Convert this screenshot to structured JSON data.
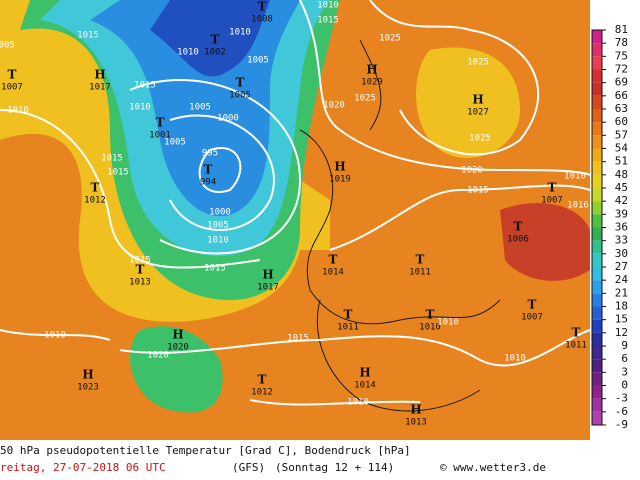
{
  "map": {
    "centers": [
      {
        "symbol": "T",
        "pressure": "1008"
      },
      {
        "symbol": "T",
        "pressure": "1002"
      },
      {
        "symbol": "T",
        "pressure": "1005"
      },
      {
        "symbol": "H",
        "pressure": "1017"
      },
      {
        "symbol": "T",
        "pressure": "1007"
      },
      {
        "symbol": "T",
        "pressure": "1001"
      },
      {
        "symbol": "H",
        "pressure": "1029"
      },
      {
        "symbol": "H",
        "pressure": "1027"
      },
      {
        "symbol": "T",
        "pressure": "994"
      },
      {
        "symbol": "H",
        "pressure": "1019"
      },
      {
        "symbol": "T",
        "pressure": "1012"
      },
      {
        "symbol": "T",
        "pressure": "1013"
      },
      {
        "symbol": "T",
        "pressure": "1014"
      },
      {
        "symbol": "H",
        "pressure": "1017"
      },
      {
        "symbol": "T",
        "pressure": "1011"
      },
      {
        "symbol": "T",
        "pressure": "1011"
      },
      {
        "symbol": "T",
        "pressure": "1010"
      },
      {
        "symbol": "T",
        "pressure": "1007"
      },
      {
        "symbol": "T",
        "pressure": "1006"
      },
      {
        "symbol": "T",
        "pressure": "1007"
      },
      {
        "symbol": "H",
        "pressure": "1020"
      },
      {
        "symbol": "H",
        "pressure": "1023"
      },
      {
        "symbol": "T",
        "pressure": "1012"
      },
      {
        "symbol": "H",
        "pressure": "1014"
      },
      {
        "symbol": "H",
        "pressure": "1013"
      },
      {
        "symbol": "T",
        "pressure": "1011"
      }
    ],
    "isobar_labels": [
      "1010",
      "1015",
      "1010",
      "1010",
      "1005",
      "1015",
      "1025",
      "1025",
      "1020",
      "1025",
      "1015",
      "1010",
      "1005",
      "1000",
      "1005",
      "995",
      "1015",
      "1015",
      "1025",
      "1020",
      "1015",
      "1010",
      "1016",
      "1000",
      "1005",
      "1010",
      "1015",
      "1015",
      "1015",
      "1020",
      "1010",
      "1010",
      "1010",
      "1010",
      "1005",
      "1010"
    ],
    "colorbar": {
      "ticks": [
        81,
        78,
        75,
        72,
        69,
        66,
        63,
        60,
        57,
        54,
        51,
        48,
        45,
        42,
        39,
        36,
        33,
        30,
        27,
        24,
        21,
        18,
        15,
        12,
        9,
        6,
        3,
        0,
        -3,
        -6,
        -9
      ]
    },
    "footer": {
      "title": "50 hPa pseudopotentielle Temperatur [Grad C], Bodendruck [hPa]",
      "date": "reitag, 27-07-2018  06 UTC",
      "model": "(GFS)",
      "run": "(Sonntag 12 + 114)",
      "credit": "© www.wetter3.de"
    }
  }
}
